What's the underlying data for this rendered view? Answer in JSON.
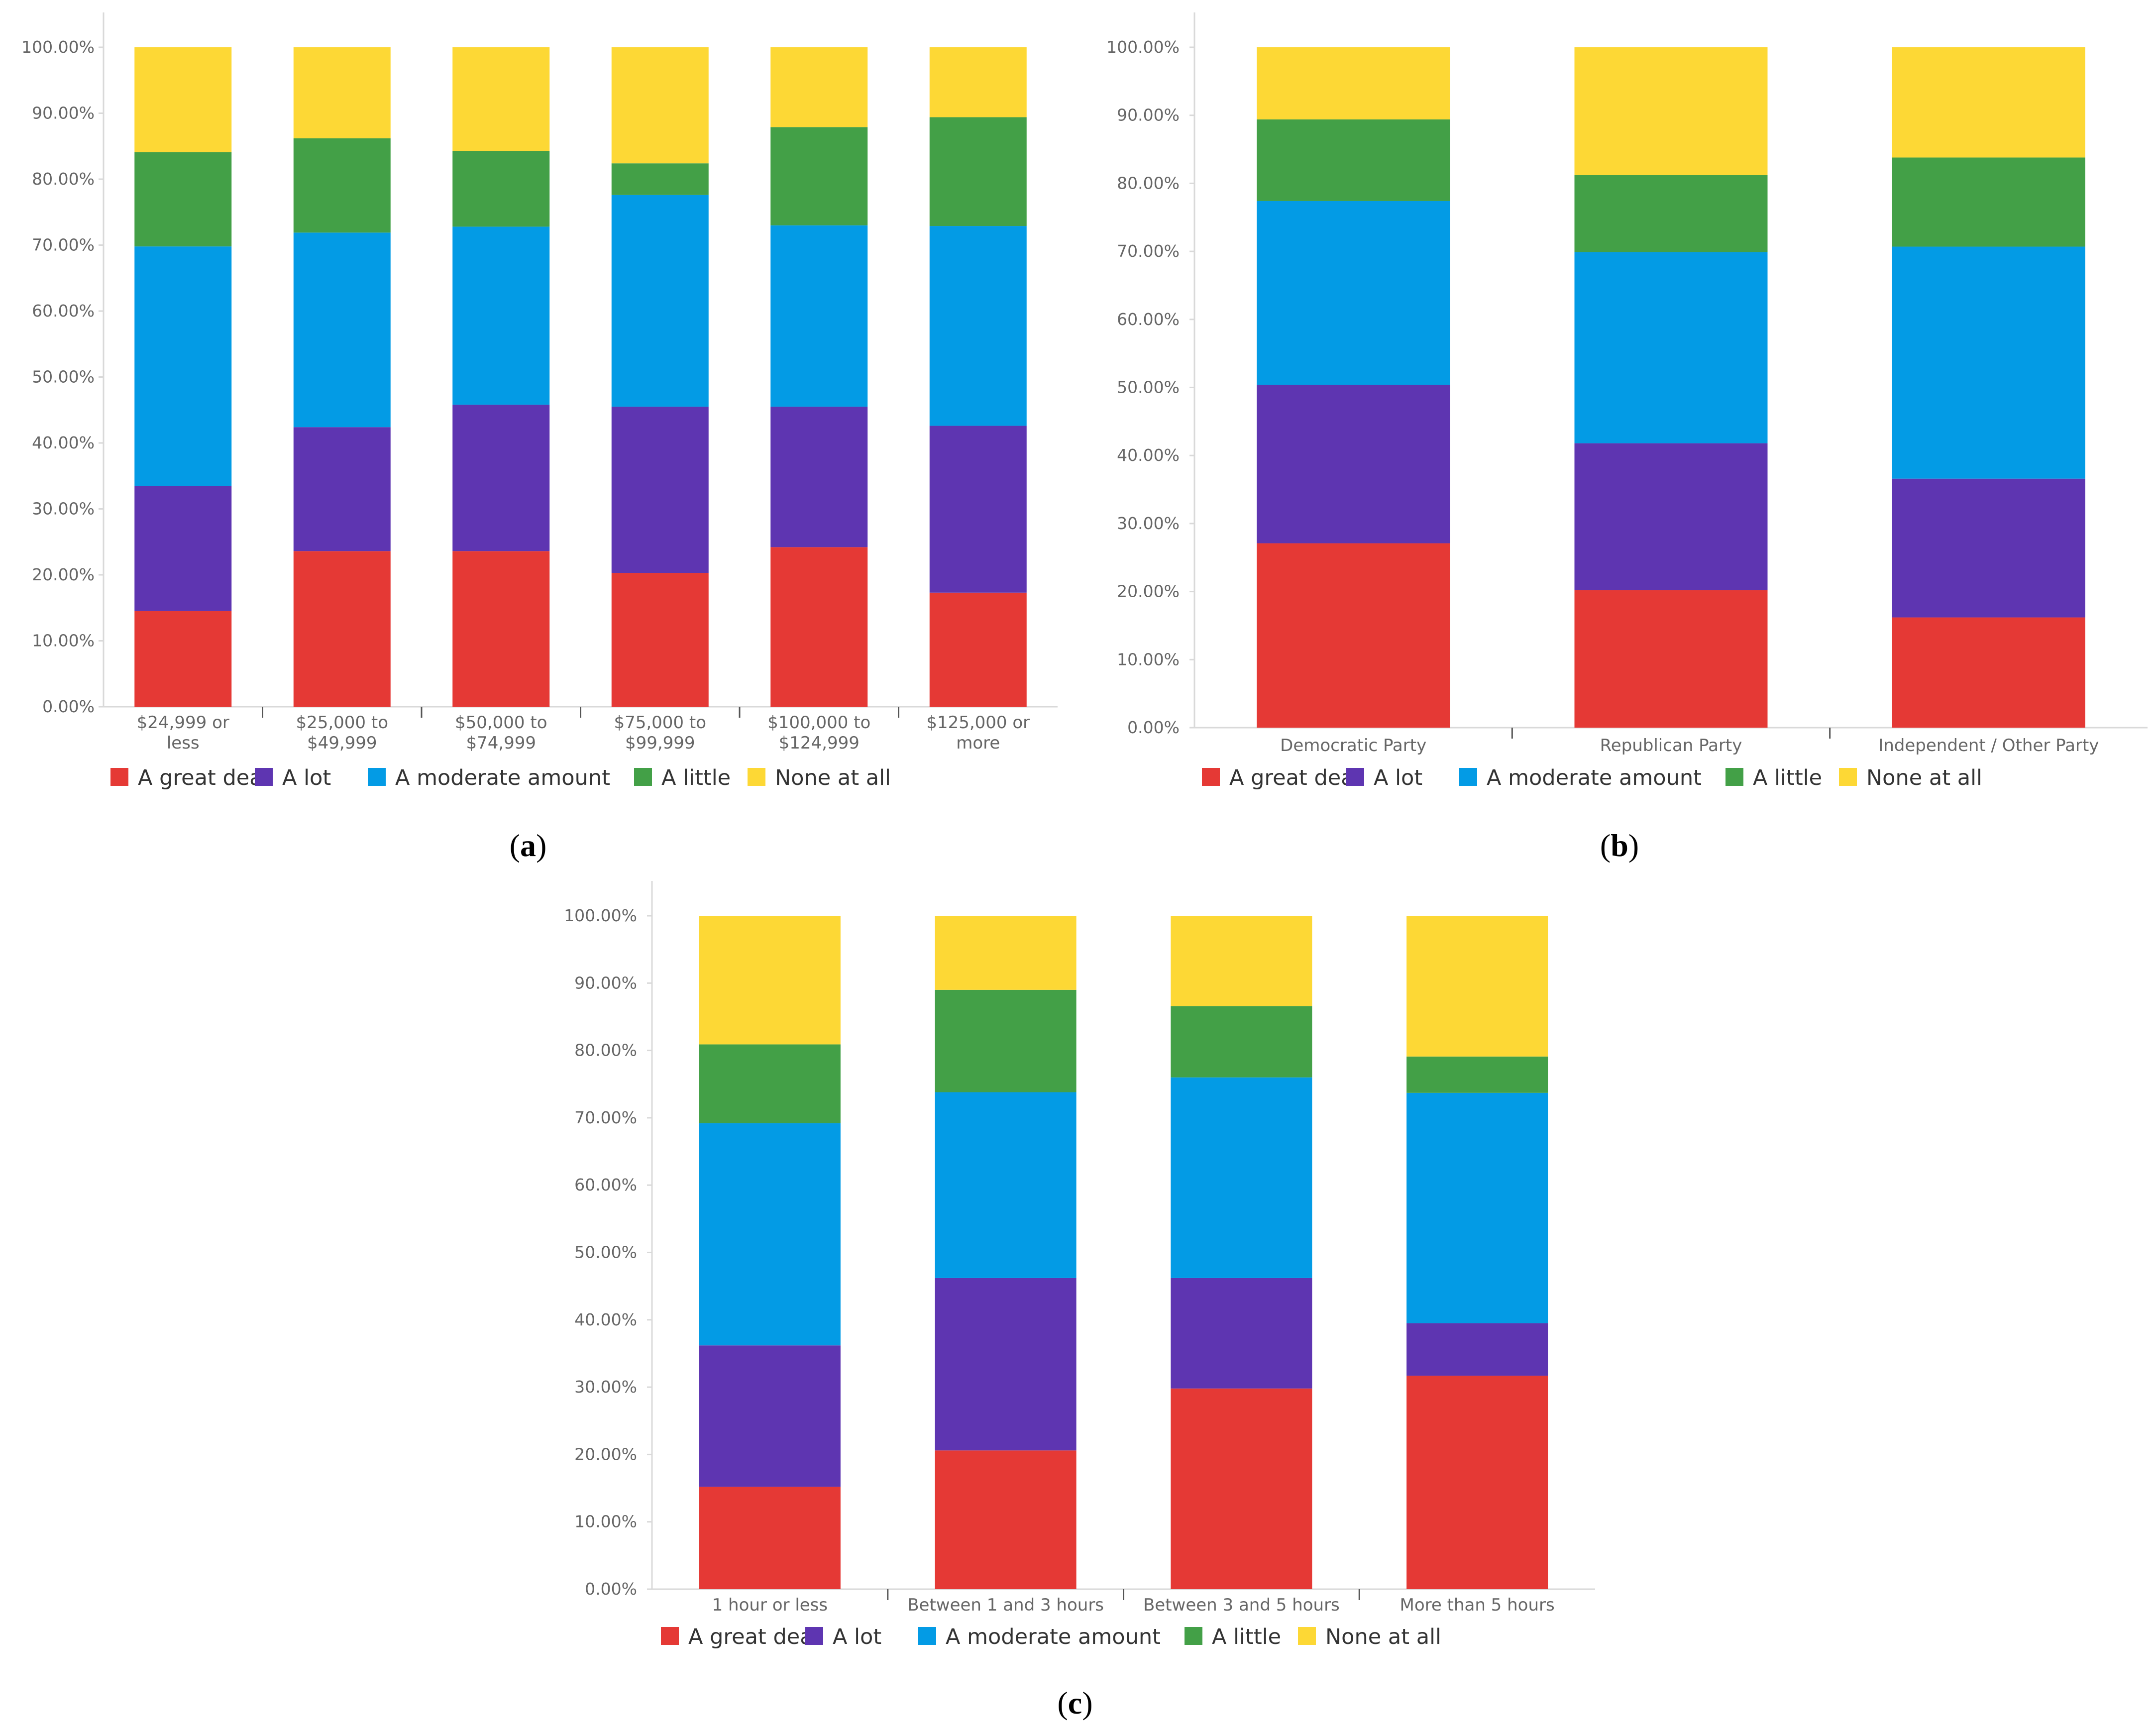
{
  "colors": {
    "A great deal": "#e53935",
    "A lot": "#5e35b1",
    "A moderate amount": "#039be5",
    "A little": "#43a047",
    "None at all": "#fdd835",
    "axis": "#d9d9d9",
    "tick_text": "#666666"
  },
  "panel_labels": [
    {
      "open": "(",
      "letter": "a",
      "close": ")"
    },
    {
      "open": "(",
      "letter": "b",
      "close": ")"
    },
    {
      "open": "(",
      "letter": "c",
      "close": ")"
    }
  ],
  "chart_data": [
    {
      "type": "bar",
      "stacked": true,
      "title": "",
      "xlabel": "",
      "ylabel": "",
      "ylim": [
        0,
        100
      ],
      "ytick_labels": [
        "0.00%",
        "10.00%",
        "20.00%",
        "30.00%",
        "40.00%",
        "50.00%",
        "60.00%",
        "70.00%",
        "80.00%",
        "90.00%",
        "100.00%"
      ],
      "categories": [
        [
          "$24,999 or",
          "less"
        ],
        [
          "$25,000 to",
          "$49,999"
        ],
        [
          "$50,000 to",
          "$74,999"
        ],
        [
          "$75,000 to",
          "$99,999"
        ],
        [
          "$100,000 to",
          "$124,999"
        ],
        [
          "$125,000 or",
          "more"
        ]
      ],
      "legend_position": "bottom-left",
      "series": [
        {
          "name": "A great deal",
          "values": [
            14.5,
            23.6,
            23.6,
            20.3,
            24.2,
            17.3
          ]
        },
        {
          "name": "A lot",
          "values": [
            19.0,
            18.8,
            22.2,
            25.2,
            21.3,
            25.3
          ]
        },
        {
          "name": "A moderate amount",
          "values": [
            36.3,
            29.5,
            27.0,
            32.1,
            27.5,
            30.3
          ]
        },
        {
          "name": "A little",
          "values": [
            14.3,
            14.3,
            11.5,
            4.8,
            14.9,
            16.5
          ]
        },
        {
          "name": "None at all",
          "values": [
            15.9,
            13.8,
            15.7,
            17.6,
            12.1,
            10.6
          ]
        }
      ]
    },
    {
      "type": "bar",
      "stacked": true,
      "title": "",
      "xlabel": "",
      "ylabel": "",
      "ylim": [
        0,
        100
      ],
      "ytick_labels": [
        "0.00%",
        "10.00%",
        "20.00%",
        "30.00%",
        "40.00%",
        "50.00%",
        "60.00%",
        "70.00%",
        "80.00%",
        "90.00%",
        "100.00%"
      ],
      "categories": [
        [
          "Democratic Party"
        ],
        [
          "Republican Party"
        ],
        [
          "Independent / Other Party"
        ]
      ],
      "legend_position": "bottom-left",
      "series": [
        {
          "name": "A great deal",
          "values": [
            27.1,
            20.2,
            16.2
          ]
        },
        {
          "name": "A lot",
          "values": [
            23.3,
            21.6,
            20.4
          ]
        },
        {
          "name": "A moderate amount",
          "values": [
            27.0,
            28.1,
            34.1
          ]
        },
        {
          "name": "A little",
          "values": [
            12.0,
            11.3,
            13.1
          ]
        },
        {
          "name": "None at all",
          "values": [
            10.6,
            18.8,
            16.2
          ]
        }
      ]
    },
    {
      "type": "bar",
      "stacked": true,
      "title": "",
      "xlabel": "",
      "ylabel": "",
      "ylim": [
        0,
        100
      ],
      "ytick_labels": [
        "0.00%",
        "10.00%",
        "20.00%",
        "30.00%",
        "40.00%",
        "50.00%",
        "60.00%",
        "70.00%",
        "80.00%",
        "90.00%",
        "100.00%"
      ],
      "categories": [
        [
          "1 hour or less"
        ],
        [
          "Between 1 and 3 hours"
        ],
        [
          "Between 3 and 5 hours"
        ],
        [
          "More than 5 hours"
        ]
      ],
      "legend_position": "bottom-left",
      "series": [
        {
          "name": "A great deal",
          "values": [
            15.2,
            20.6,
            29.8,
            31.7
          ]
        },
        {
          "name": "A lot",
          "values": [
            21.0,
            25.6,
            16.4,
            7.8
          ]
        },
        {
          "name": "A moderate amount",
          "values": [
            33.0,
            27.6,
            29.8,
            34.2
          ]
        },
        {
          "name": "A little",
          "values": [
            11.7,
            15.2,
            10.6,
            5.4
          ]
        },
        {
          "name": "None at all",
          "values": [
            19.1,
            11.0,
            13.4,
            20.9
          ]
        }
      ]
    }
  ]
}
